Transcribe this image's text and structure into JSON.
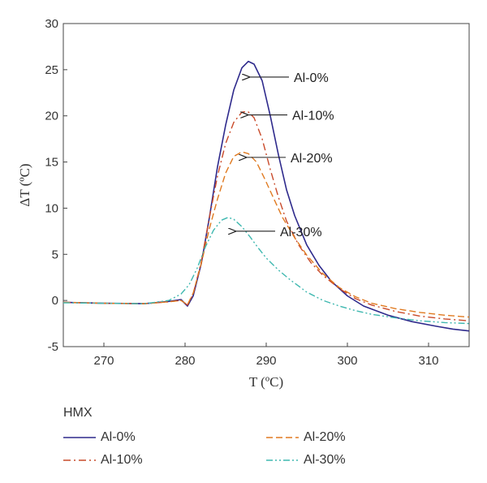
{
  "chart_data": {
    "type": "line",
    "xlabel": "T (ºC)",
    "ylabel": "ΔT (ºC)",
    "xlim": [
      265,
      315
    ],
    "ylim": [
      -5,
      30
    ],
    "xticks": [
      270,
      280,
      290,
      300,
      310
    ],
    "yticks": [
      -5,
      0,
      5,
      10,
      15,
      20,
      25,
      30
    ],
    "grid": false,
    "legend": {
      "title": "HMX",
      "placement": "below",
      "entries": [
        "Al-0%",
        "Al-10%",
        "Al-20%",
        "Al-30%"
      ]
    },
    "annotations": [
      {
        "text": "Al-0%",
        "x": 287.8,
        "y": 24.2
      },
      {
        "text": "Al-10%",
        "x": 287.6,
        "y": 20.1
      },
      {
        "text": "Al-20%",
        "x": 287.4,
        "y": 15.5
      },
      {
        "text": "Al-30%",
        "x": 286.1,
        "y": 7.5
      }
    ],
    "series": [
      {
        "name": "Al-0%",
        "color": "#2e2a8c",
        "dash": "solid",
        "points": [
          [
            265,
            -0.2
          ],
          [
            270,
            -0.3
          ],
          [
            275,
            -0.35
          ],
          [
            278,
            -0.1
          ],
          [
            279.5,
            0.1
          ],
          [
            280.3,
            -0.6
          ],
          [
            281,
            0.5
          ],
          [
            282,
            4
          ],
          [
            283,
            9
          ],
          [
            284,
            14.5
          ],
          [
            285,
            19
          ],
          [
            286,
            22.8
          ],
          [
            287,
            25.2
          ],
          [
            287.8,
            25.9
          ],
          [
            288.5,
            25.6
          ],
          [
            289.5,
            23.8
          ],
          [
            290.5,
            20
          ],
          [
            291.5,
            15.8
          ],
          [
            292.5,
            12
          ],
          [
            293.5,
            9.2
          ],
          [
            295,
            6
          ],
          [
            296.5,
            3.8
          ],
          [
            298,
            2.1
          ],
          [
            300,
            0.5
          ],
          [
            302,
            -0.6
          ],
          [
            305,
            -1.6
          ],
          [
            308,
            -2.3
          ],
          [
            311,
            -2.8
          ],
          [
            313,
            -3.1
          ],
          [
            315,
            -3.3
          ]
        ]
      },
      {
        "name": "Al-10%",
        "color": "#c94a2a",
        "dash": "dashdot",
        "points": [
          [
            265,
            -0.2
          ],
          [
            270,
            -0.3
          ],
          [
            275,
            -0.35
          ],
          [
            278,
            -0.15
          ],
          [
            279.5,
            0
          ],
          [
            280.3,
            -0.5
          ],
          [
            281,
            0.7
          ],
          [
            282,
            4.2
          ],
          [
            283,
            9
          ],
          [
            284,
            13.5
          ],
          [
            285,
            17
          ],
          [
            286,
            19.3
          ],
          [
            287,
            20.4
          ],
          [
            287.7,
            20.5
          ],
          [
            288.5,
            19.8
          ],
          [
            289.5,
            17.5
          ],
          [
            290.5,
            14.2
          ],
          [
            291.5,
            11.2
          ],
          [
            292.5,
            8.6
          ],
          [
            294,
            6
          ],
          [
            295.5,
            4.1
          ],
          [
            297,
            2.7
          ],
          [
            299,
            1.3
          ],
          [
            301,
            0.2
          ],
          [
            303,
            -0.5
          ],
          [
            306,
            -1.2
          ],
          [
            309,
            -1.7
          ],
          [
            312,
            -2
          ],
          [
            315,
            -2.2
          ]
        ]
      },
      {
        "name": "Al-20%",
        "color": "#e07a20",
        "dash": "dash",
        "points": [
          [
            265,
            -0.2
          ],
          [
            270,
            -0.3
          ],
          [
            275,
            -0.35
          ],
          [
            278,
            -0.15
          ],
          [
            279.5,
            0
          ],
          [
            280.3,
            -0.45
          ],
          [
            281,
            0.8
          ],
          [
            282,
            4
          ],
          [
            283,
            7.8
          ],
          [
            284,
            11
          ],
          [
            285,
            13.8
          ],
          [
            286,
            15.6
          ],
          [
            287,
            16.1
          ],
          [
            287.8,
            15.9
          ],
          [
            288.8,
            15
          ],
          [
            289.8,
            13.2
          ],
          [
            291,
            10.9
          ],
          [
            292,
            9
          ],
          [
            293.5,
            6.8
          ],
          [
            295,
            4.9
          ],
          [
            297,
            2.9
          ],
          [
            299,
            1.4
          ],
          [
            301,
            0.4
          ],
          [
            303,
            -0.3
          ],
          [
            306,
            -0.9
          ],
          [
            309,
            -1.3
          ],
          [
            312,
            -1.6
          ],
          [
            315,
            -1.8
          ]
        ]
      },
      {
        "name": "Al-30%",
        "color": "#3fb8b0",
        "dash": "dashdotdot",
        "points": [
          [
            265,
            -0.25
          ],
          [
            270,
            -0.3
          ],
          [
            275,
            -0.35
          ],
          [
            278,
            0
          ],
          [
            279.5,
            0.7
          ],
          [
            280.5,
            1.7
          ],
          [
            281.5,
            3.5
          ],
          [
            282.5,
            5.8
          ],
          [
            283.5,
            7.6
          ],
          [
            284.5,
            8.7
          ],
          [
            285.3,
            9
          ],
          [
            286,
            8.8
          ],
          [
            287,
            8
          ],
          [
            288,
            6.9
          ],
          [
            289,
            5.7
          ],
          [
            290,
            4.6
          ],
          [
            291.5,
            3.3
          ],
          [
            293,
            2.2
          ],
          [
            295,
            0.9
          ],
          [
            297,
            0
          ],
          [
            299,
            -0.6
          ],
          [
            301,
            -1.1
          ],
          [
            303,
            -1.5
          ],
          [
            306,
            -1.9
          ],
          [
            309,
            -2.2
          ],
          [
            312,
            -2.4
          ],
          [
            315,
            -2.5
          ]
        ]
      }
    ]
  }
}
